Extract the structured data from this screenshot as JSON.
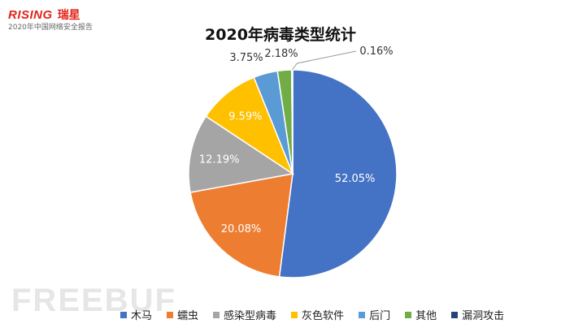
{
  "header": {
    "logo_en": "RISING",
    "logo_cn": "瑞星",
    "subtitle": "2020年中国网络安全报告"
  },
  "watermark": "FREEBUF",
  "chart_data": {
    "type": "pie",
    "title": "2020年病毒类型统计",
    "start_angle_deg": 0,
    "direction": "clockwise",
    "legend_position": "bottom",
    "slices": [
      {
        "label": "木马",
        "value": 52.05,
        "display": "52.05%",
        "color": "#4472C4",
        "label_color": "#ffffff",
        "label_inside": true
      },
      {
        "label": "蠕虫",
        "value": 20.08,
        "display": "20.08%",
        "color": "#ED7D31",
        "label_color": "#ffffff",
        "label_inside": true
      },
      {
        "label": "感染型病毒",
        "value": 12.19,
        "display": "12.19%",
        "color": "#A5A5A5",
        "label_color": "#ffffff",
        "label_inside": true
      },
      {
        "label": "灰色软件",
        "value": 9.59,
        "display": "9.59%",
        "color": "#FFC000",
        "label_color": "#ffffff",
        "label_inside": true
      },
      {
        "label": "后门",
        "value": 3.75,
        "display": "3.75%",
        "color": "#5B9BD5",
        "label_color": "#333333",
        "label_inside": false
      },
      {
        "label": "其他",
        "value": 2.18,
        "display": "2.18%",
        "color": "#70AD47",
        "label_color": "#333333",
        "label_inside": false
      },
      {
        "label": "漏洞攻击",
        "value": 0.16,
        "display": "0.16%",
        "color": "#264478",
        "label_color": "#333333",
        "label_inside": false
      }
    ]
  }
}
